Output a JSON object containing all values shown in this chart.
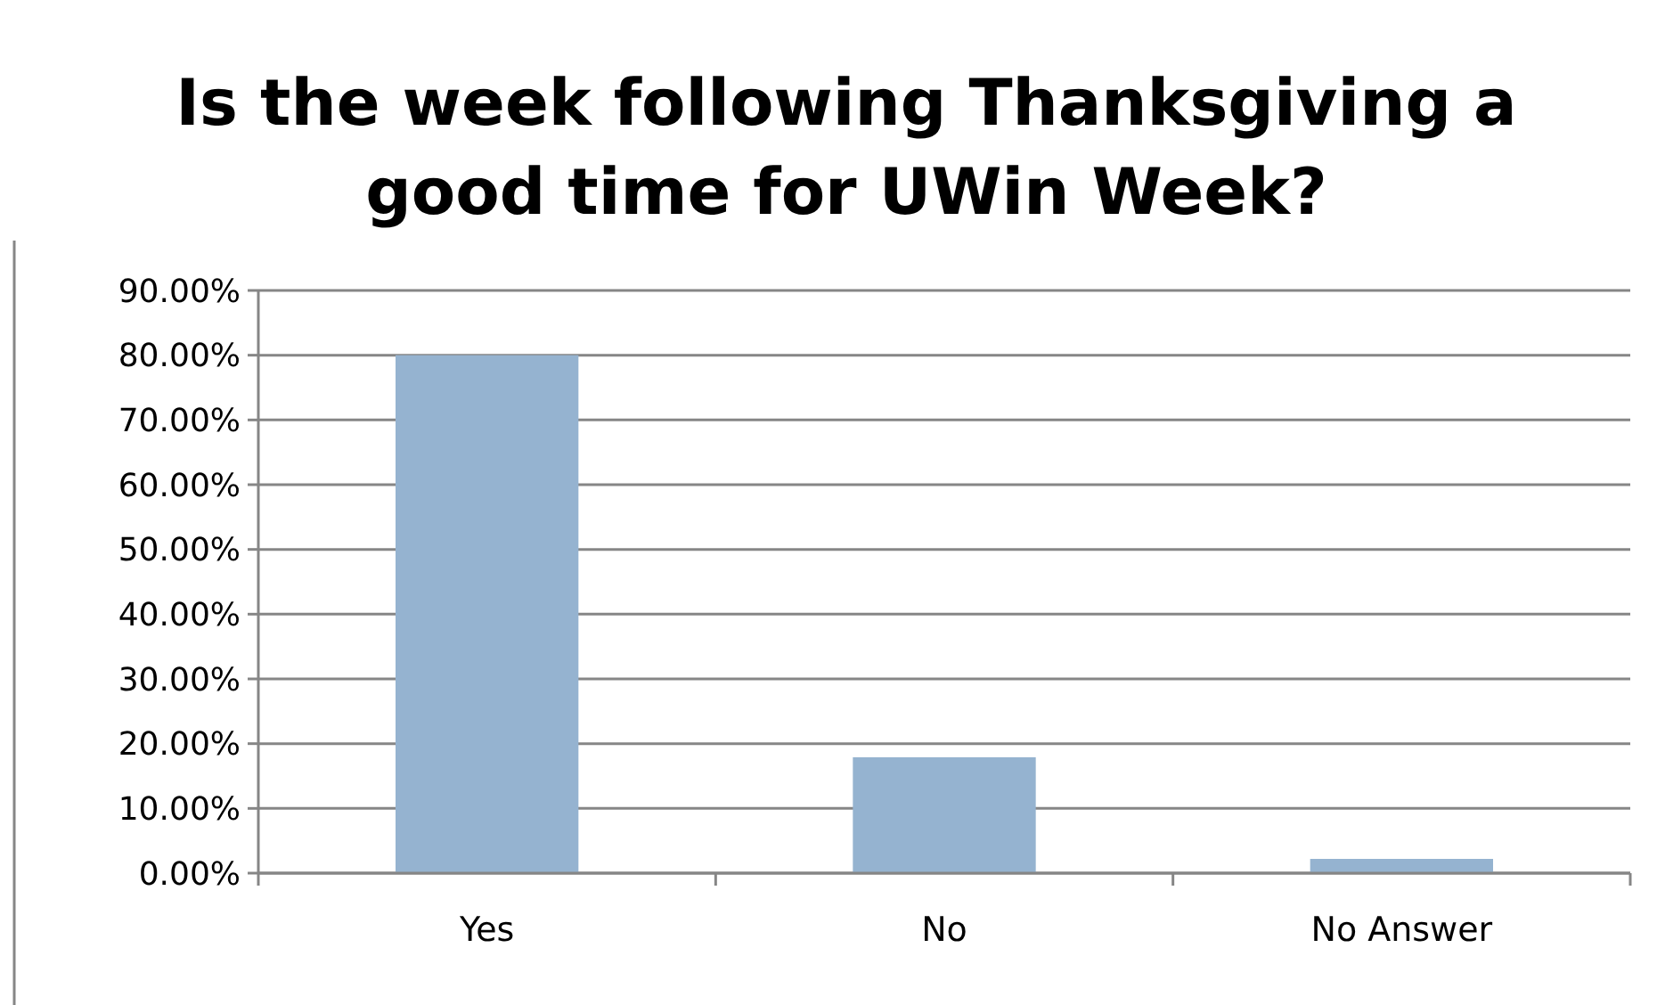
{
  "chart_data": {
    "type": "bar",
    "title": "Is the week following Thanksgiving a good time for UWin Week?",
    "categories": [
      "Yes",
      "No",
      "No Answer"
    ],
    "values": [
      80,
      17.9,
      2.2
    ],
    "color": "#95b3d0",
    "ylim": [
      0,
      90
    ],
    "yticks": [
      {
        "value": 0,
        "label": "0.00%"
      },
      {
        "value": 10,
        "label": "10.00%"
      },
      {
        "value": 20,
        "label": "20.00%"
      },
      {
        "value": 30,
        "label": "30.00%"
      },
      {
        "value": 40,
        "label": "40.00%"
      },
      {
        "value": 50,
        "label": "50.00%"
      },
      {
        "value": 60,
        "label": "60.00%"
      },
      {
        "value": 70,
        "label": "70.00%"
      },
      {
        "value": 80,
        "label": "80.00%"
      },
      {
        "value": 90,
        "label": "90.00%"
      }
    ],
    "grid": true
  }
}
